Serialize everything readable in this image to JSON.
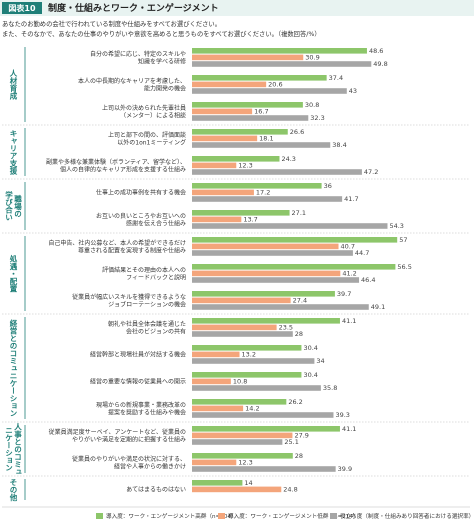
{
  "badge": "図表10",
  "chart_data": {
    "type": "bar",
    "orientation": "horizontal",
    "title": "制度・仕組みとワーク・エンゲージメント",
    "subtitle": [
      "あなたのお勤めの会社で行われている制度や仕組みをすべてお選びください。",
      "また、そのなかで、あなたの仕事のやりがいや意欲を高めると思うものをすべてお選びください。（複数回答/%）"
    ],
    "groups": [
      {
        "name": [
          "人材育成"
        ],
        "categories": [
          [
            "自分の希望に応じ、特定のスキルや",
            "知識を学べる研修"
          ],
          [
            "本人の中長期的なキャリアを考慮した、",
            "能力開発の機会"
          ],
          [
            "上司以外の決められた先輩社員",
            "（メンター）による相談"
          ]
        ]
      },
      {
        "name": [
          "キャリア支援"
        ],
        "categories": [
          [
            "上司と部下の間の、評価面談",
            "以外の1on1ミーティング"
          ],
          [
            "副業や多様な兼業体験（ボランティア、留学など）、",
            "個人の自律的なキャリア形成を支援する仕組み"
          ]
        ]
      },
      {
        "name": [
          "職場の",
          "学び合い"
        ],
        "categories": [
          [
            "仕事上の成功事例を共有する機会"
          ],
          [
            "お互いの良いところやお互いへの",
            "感謝を伝え合う仕組み"
          ]
        ]
      },
      {
        "name": [
          "処遇・配置"
        ],
        "categories": [
          [
            "自己申告、社内公募など、本人の希望ができるだけ",
            "尊重される配置を実現する制度や仕組み"
          ],
          [
            "評価結果とその理由の本人への",
            "フィードバックと説明"
          ],
          [
            "従業員が幅広いスキルを獲得できるような",
            "ジョブローテーションの機会"
          ]
        ]
      },
      {
        "name": [
          "経営とのコミュニケーション"
        ],
        "categories": [
          [
            "朝礼や社員全体会議を通じた",
            "会社のビジョンの共有"
          ],
          [
            "経営幹部と現場社員が対話する機会"
          ],
          [
            "経営の重要な情報の従業員への開示"
          ],
          [
            "現場からの新規事業・業務改革の",
            "提案を奨励する仕組みや機会"
          ]
        ]
      },
      {
        "name": [
          "人事とのコミュ",
          "ニケーション"
        ],
        "categories": [
          [
            "従業員満足度サーベイ、アンケートなど、従業員の",
            "やりがいや満足を定期的に把握する仕組み"
          ],
          [
            "従業員のやりがいや満足の状況に対する、",
            "経営や人事からの働きかけ"
          ]
        ]
      },
      {
        "name": [
          "その他"
        ],
        "categories": [
          [
            "あてはまるものはない"
          ]
        ]
      }
    ],
    "series": [
      {
        "name": "導入度：ワーク・エンゲージメント高群（n=204）",
        "color": "#8dc66a",
        "values": [
          48.6,
          37.4,
          30.8,
          26.6,
          24.3,
          36.0,
          27.1,
          57.0,
          56.5,
          39.7,
          41.1,
          30.4,
          30.4,
          26.2,
          41.1,
          28.0,
          14.0
        ]
      },
      {
        "name": "導入度：ワーク・エンゲージメント低群（n=214）",
        "color": "#f4a57b",
        "values": [
          30.9,
          20.6,
          16.7,
          18.1,
          12.3,
          17.2,
          13.7,
          40.7,
          41.2,
          27.4,
          23.5,
          13.2,
          10.8,
          14.2,
          27.9,
          12.3,
          24.8
        ]
      },
      {
        "name": "役立ち度（制度・仕組みあり回答者における選択率）",
        "color": "#a6a6a6",
        "values": [
          49.8,
          43.0,
          32.3,
          38.4,
          47.2,
          41.7,
          54.3,
          44.7,
          46.4,
          49.1,
          28.0,
          34.0,
          35.8,
          39.3,
          25.1,
          39.9,
          null
        ]
      }
    ],
    "xlim": [
      0,
      60
    ]
  }
}
